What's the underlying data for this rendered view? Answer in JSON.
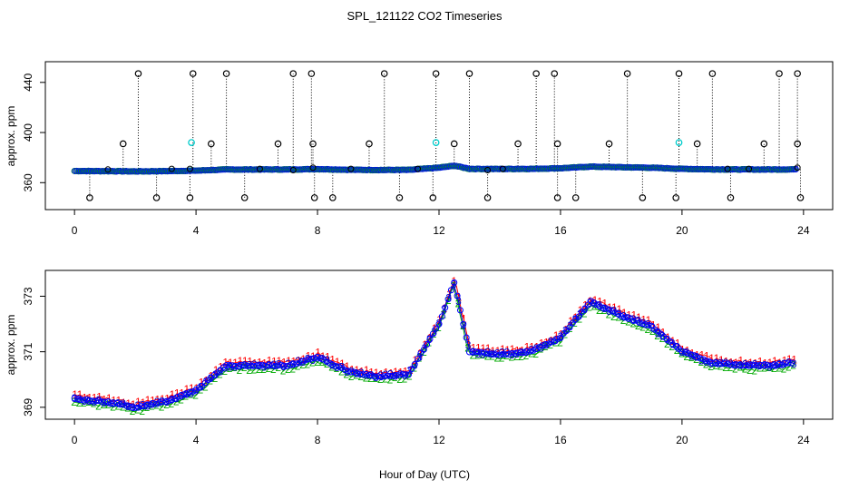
{
  "title": "SPL_121122  CO2 Timeseries",
  "colors": {
    "axis": "#000000",
    "series1": "#ff0000",
    "series2": "#00aa00",
    "series3": "#0000cc",
    "avg": "#0000ff",
    "cyan": "#00cccc",
    "black": "#000000"
  },
  "chart_data": [
    {
      "type": "scatter",
      "xlabel": "",
      "ylabel": "approx. ppm",
      "xlim": [
        -0.96,
        24.96
      ],
      "ylim": [
        338.5,
        456.5
      ],
      "xticks": [
        0,
        4,
        8,
        12,
        16,
        20,
        24
      ],
      "yticks": [
        360,
        400,
        440
      ],
      "baseline": [
        [
          0,
          369.3
        ],
        [
          1,
          369.2
        ],
        [
          2,
          369.0
        ],
        [
          3,
          369.2
        ],
        [
          4,
          369.6
        ],
        [
          5,
          370.5
        ],
        [
          6,
          370.5
        ],
        [
          7,
          370.5
        ],
        [
          8,
          370.8
        ],
        [
          9,
          370.3
        ],
        [
          10,
          370.1
        ],
        [
          11,
          370.2
        ],
        [
          12,
          372.0
        ],
        [
          12.5,
          373.5
        ],
        [
          13,
          371.0
        ],
        [
          14,
          370.9
        ],
        [
          15,
          371.0
        ],
        [
          16,
          371.5
        ],
        [
          17,
          372.8
        ],
        [
          18,
          372.3
        ],
        [
          19,
          371.9
        ],
        [
          20,
          371.0
        ],
        [
          21,
          370.6
        ],
        [
          22,
          370.5
        ],
        [
          23,
          370.5
        ],
        [
          23.7,
          370.6
        ]
      ],
      "spikes_high": [
        2.1,
        3.9,
        5.0,
        7.2,
        7.8,
        10.2,
        11.9,
        13.0,
        15.2,
        15.8,
        18.2,
        19.9,
        21.0,
        23.2,
        23.8
      ],
      "spikes_mid": [
        1.6,
        4.5,
        6.7,
        7.85,
        9.7,
        12.5,
        14.6,
        15.9,
        17.6,
        20.5,
        22.7,
        23.8
      ],
      "spikes_low": [
        0.5,
        2.7,
        3.8,
        5.6,
        7.9,
        8.5,
        10.7,
        11.8,
        13.6,
        15.9,
        16.5,
        18.7,
        19.8,
        21.6,
        23.9
      ],
      "cyan_points": [
        [
          3.85,
          392
        ],
        [
          11.9,
          392
        ],
        [
          19.9,
          392
        ]
      ],
      "cross_points": [
        [
          1.1,
          370.5
        ],
        [
          3.2,
          371
        ],
        [
          3.8,
          371
        ],
        [
          6.1,
          371
        ],
        [
          7.2,
          370
        ],
        [
          7.85,
          372
        ],
        [
          9.1,
          371
        ],
        [
          11.3,
          371
        ],
        [
          13.6,
          370
        ],
        [
          14.1,
          371
        ],
        [
          21.5,
          371
        ],
        [
          22.2,
          371
        ],
        [
          23.8,
          372
        ]
      ]
    },
    {
      "type": "line",
      "xlabel": "Hour of Day (UTC)",
      "ylabel": "approx. ppm",
      "xlim": [
        -0.96,
        24.96
      ],
      "ylim": [
        368.57,
        373.93
      ],
      "xticks": [
        0,
        4,
        8,
        12,
        16,
        20,
        24
      ],
      "yticks": [
        369,
        371,
        373
      ],
      "series": [
        {
          "name": "1",
          "values": [
            [
              0,
              369.3
            ],
            [
              1,
              369.2
            ],
            [
              2,
              369.0
            ],
            [
              3,
              369.2
            ],
            [
              4,
              369.6
            ],
            [
              5,
              370.5
            ],
            [
              6,
              370.5
            ],
            [
              7,
              370.5
            ],
            [
              8,
              370.8
            ],
            [
              9,
              370.3
            ],
            [
              10,
              370.1
            ],
            [
              11,
              370.2
            ],
            [
              12,
              372.0
            ],
            [
              12.5,
              373.5
            ],
            [
              13,
              371.0
            ],
            [
              14,
              370.9
            ],
            [
              15,
              371.0
            ],
            [
              16,
              371.5
            ],
            [
              17,
              372.8
            ],
            [
              18,
              372.3
            ],
            [
              19,
              371.9
            ],
            [
              20,
              371.0
            ],
            [
              21,
              370.6
            ],
            [
              22,
              370.5
            ],
            [
              23,
              370.5
            ],
            [
              23.7,
              370.6
            ]
          ]
        },
        {
          "name": "2",
          "values": [
            [
              0,
              369.3
            ],
            [
              1,
              369.2
            ],
            [
              2,
              369.0
            ],
            [
              3,
              369.2
            ],
            [
              4,
              369.6
            ],
            [
              5,
              370.5
            ],
            [
              6,
              370.5
            ],
            [
              7,
              370.5
            ],
            [
              8,
              370.8
            ],
            [
              9,
              370.3
            ],
            [
              10,
              370.1
            ],
            [
              11,
              370.2
            ],
            [
              12,
              372.0
            ],
            [
              12.5,
              373.5
            ],
            [
              13,
              371.0
            ],
            [
              14,
              370.9
            ],
            [
              15,
              371.0
            ],
            [
              16,
              371.5
            ],
            [
              17,
              372.8
            ],
            [
              18,
              372.3
            ],
            [
              19,
              371.9
            ],
            [
              20,
              371.0
            ],
            [
              21,
              370.6
            ],
            [
              22,
              370.5
            ],
            [
              23,
              370.5
            ],
            [
              23.7,
              370.6
            ]
          ]
        },
        {
          "name": "3",
          "values": [
            [
              0,
              369.3
            ],
            [
              1,
              369.2
            ],
            [
              2,
              369.0
            ],
            [
              3,
              369.2
            ],
            [
              4,
              369.6
            ],
            [
              5,
              370.5
            ],
            [
              6,
              370.5
            ],
            [
              7,
              370.5
            ],
            [
              8,
              370.8
            ],
            [
              9,
              370.3
            ],
            [
              10,
              370.1
            ],
            [
              11,
              370.2
            ],
            [
              12,
              372.0
            ],
            [
              12.5,
              373.5
            ],
            [
              13,
              371.0
            ],
            [
              14,
              370.9
            ],
            [
              15,
              371.0
            ],
            [
              16,
              371.5
            ],
            [
              17,
              372.8
            ],
            [
              18,
              372.3
            ],
            [
              19,
              371.9
            ],
            [
              20,
              371.0
            ],
            [
              21,
              370.6
            ],
            [
              22,
              370.5
            ],
            [
              23,
              370.5
            ],
            [
              23.7,
              370.6
            ]
          ]
        }
      ]
    }
  ]
}
